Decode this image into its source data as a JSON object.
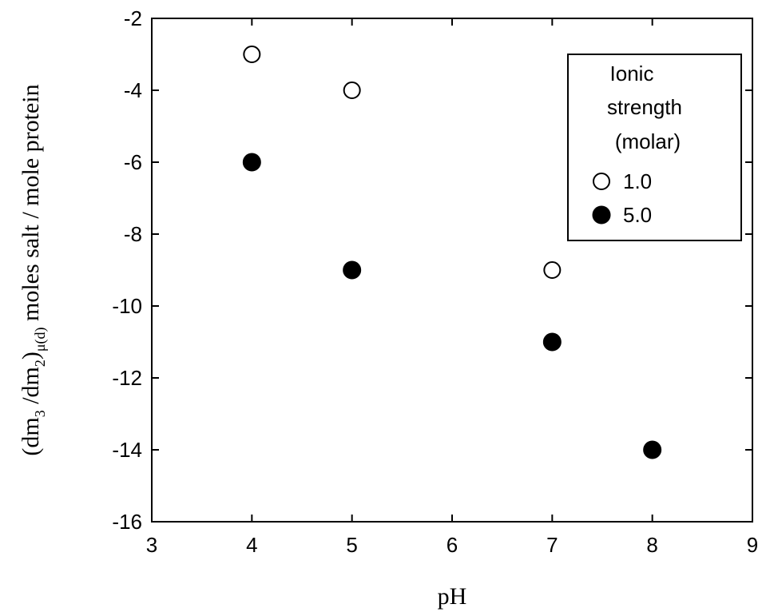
{
  "chart_data": {
    "type": "scatter",
    "xlabel": "pH",
    "ylabel": {
      "prefix": "(dm",
      "sub1": "3",
      "mid": " /dm",
      "sub2": "2",
      "close": ")",
      "sub3": "μ(d)",
      "rest": "  moles salt / mole protein"
    },
    "xlim": [
      3,
      9
    ],
    "ylim": [
      -16,
      -2
    ],
    "xticks": [
      3,
      4,
      5,
      6,
      7,
      8,
      9
    ],
    "yticks": [
      -2,
      -4,
      -6,
      -8,
      -10,
      -12,
      -14,
      -16
    ],
    "grid": false,
    "legend": {
      "placement": "top-right",
      "title_lines": [
        "Ionic",
        "strength",
        "(molar)"
      ],
      "entries": [
        "1.0",
        "5.0"
      ]
    },
    "series": [
      {
        "name": "1.0",
        "marker": "open-circle",
        "color": "#000000",
        "points": [
          [
            4,
            -3
          ],
          [
            5,
            -4
          ],
          [
            7,
            -9
          ]
        ]
      },
      {
        "name": "5.0",
        "marker": "filled-circle",
        "color": "#000000",
        "points": [
          [
            4,
            -6
          ],
          [
            5,
            -9
          ],
          [
            7,
            -11
          ],
          [
            8,
            -14
          ]
        ]
      }
    ]
  }
}
